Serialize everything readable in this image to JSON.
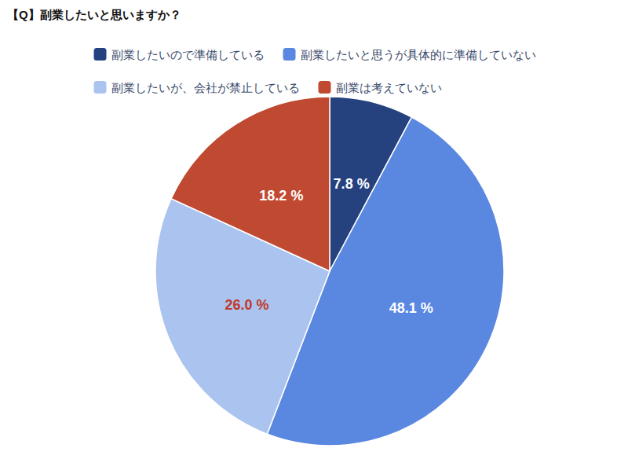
{
  "chart_data": {
    "type": "pie",
    "title": "【Q】副業したいと思いますか？",
    "categories": [
      "副業したいので準備している",
      "副業したいと思うが具体的に準備していない",
      "副業したいが、会社が禁止している",
      "副業は考えていない"
    ],
    "values": [
      7.8,
      48.1,
      26.0,
      18.2
    ],
    "value_labels": [
      "7.8 %",
      "48.1 %",
      "26.0 %",
      "18.2 %"
    ],
    "colors": [
      "#25427f",
      "#5a87e0",
      "#abc3ef",
      "#c04a31"
    ],
    "data_labels": true,
    "legend": "top"
  }
}
